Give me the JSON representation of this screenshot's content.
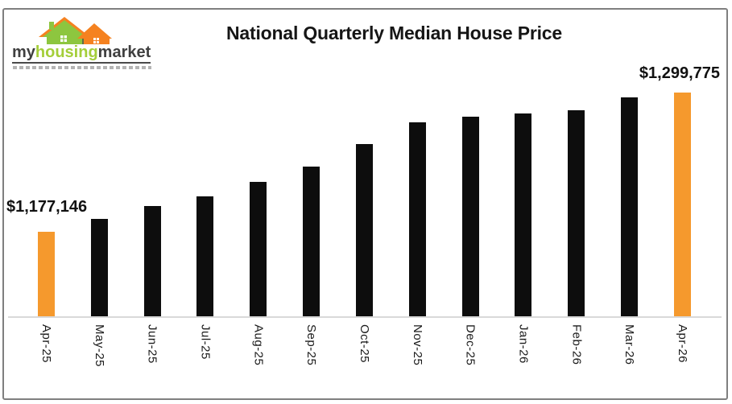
{
  "logo": {
    "brand_my": "my",
    "brand_housing": "housing",
    "brand_market": "market"
  },
  "colors": {
    "bar_default": "#0d0d0d",
    "bar_highlight": "#f5992d",
    "logo_green": "#8dc63f",
    "logo_orange": "#f58220",
    "logo_dark_text": "#3f3f3f",
    "logo_green_text": "#a4ce39",
    "frame_border": "#7f7f7f",
    "axis_line": "#d9d9d9"
  },
  "chart_data": {
    "type": "bar",
    "title": "National Quarterly Median House Price",
    "categories": [
      "Apr-25",
      "May-25",
      "Jun-25",
      "Jul-25",
      "Aug-25",
      "Sep-25",
      "Oct-25",
      "Nov-25",
      "Dec-25",
      "Jan-26",
      "Feb-26",
      "Mar-26",
      "Apr-26"
    ],
    "values": [
      1177146,
      1188000,
      1200000,
      1208000,
      1221000,
      1234000,
      1254000,
      1273000,
      1278000,
      1281000,
      1284000,
      1295000,
      1299775
    ],
    "values_note": "only first and last values are labeled in the image; middle values estimated from bar heights",
    "highlighted_indices": [
      0,
      12
    ],
    "data_labels": [
      {
        "index": 0,
        "text": "$1,177,146"
      },
      {
        "index": 12,
        "text": "$1,299,775"
      }
    ],
    "xlabel": "",
    "ylabel": "",
    "ylim": [
      1102000,
      1310000
    ],
    "grid": false,
    "legend": "none",
    "x_tick_rotation": "vertical"
  }
}
